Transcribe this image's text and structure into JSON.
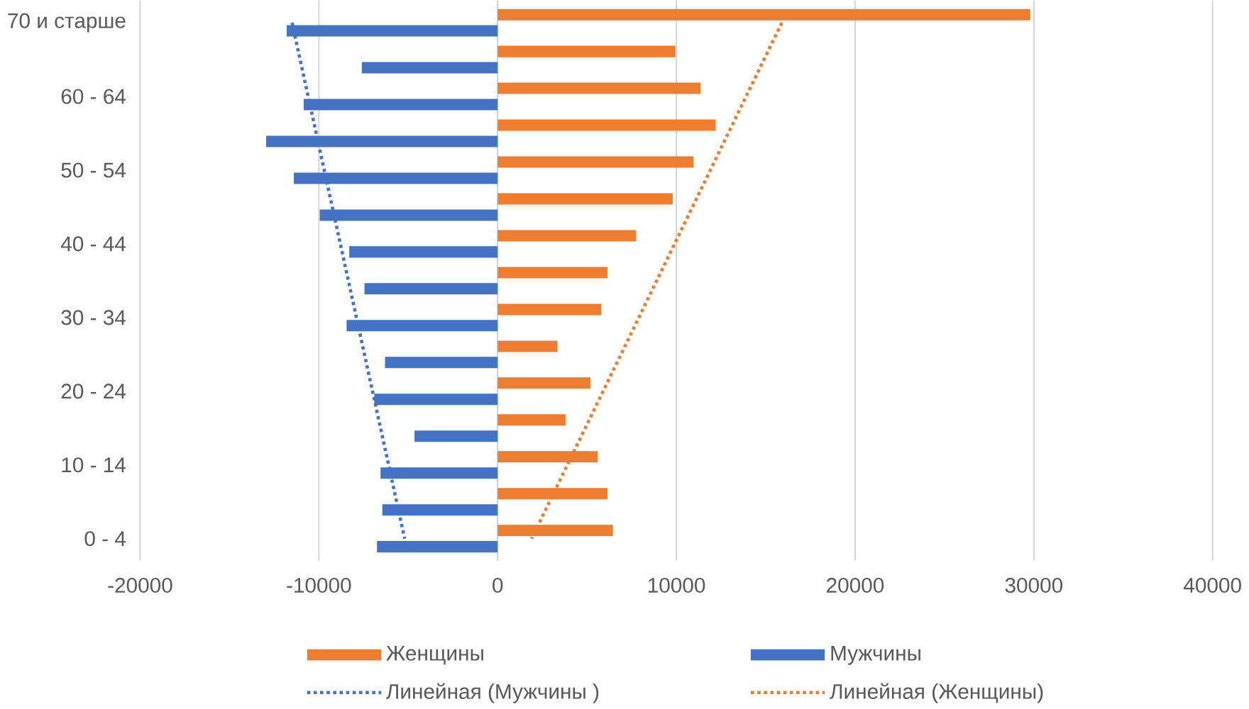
{
  "chart_data": {
    "type": "bar",
    "orientation": "horizontal",
    "categories": [
      "70 и старше",
      null,
      "60 - 64",
      null,
      "50 - 54",
      null,
      "40 - 44",
      null,
      "30 - 34",
      null,
      "20 - 24",
      null,
      "10 - 14",
      null,
      "0 - 4"
    ],
    "series": [
      {
        "name": "Женщины",
        "color": "#ed7d31",
        "values": [
          29800,
          9950,
          11350,
          12200,
          10950,
          9800,
          7750,
          6150,
          5800,
          3350,
          5200,
          3800,
          5600,
          6150,
          6450
        ]
      },
      {
        "name": "Мужчины",
        "color": "#4472c4",
        "values": [
          -11800,
          -7600,
          -10850,
          -12950,
          -11400,
          -9950,
          -8300,
          -7450,
          -8450,
          -6300,
          -6900,
          -4650,
          -6550,
          -6450,
          -6750
        ]
      },
      {
        "name": "Линейная (Мужчины )",
        "color": "#4472c4",
        "type": "line",
        "line_style": "dotted",
        "values": [
          -11500,
          -11050,
          -10600,
          -10150,
          -9700,
          -9250,
          -8800,
          -8350,
          -7900,
          -7450,
          -7000,
          -6550,
          -6100,
          -5650,
          -5200
        ]
      },
      {
        "name": "Линейная (Женщины)",
        "color": "#ed7d31",
        "type": "line",
        "line_style": "dotted",
        "values": [
          15900,
          14900,
          13900,
          12900,
          11900,
          10900,
          9900,
          8900,
          7900,
          6900,
          5900,
          4900,
          3900,
          2900,
          1900
        ]
      }
    ],
    "xlim": [
      -20000,
      40000
    ],
    "xticks": [
      -20000,
      -10000,
      0,
      10000,
      20000,
      30000,
      40000
    ],
    "grid": "x",
    "legend": "bottom"
  }
}
